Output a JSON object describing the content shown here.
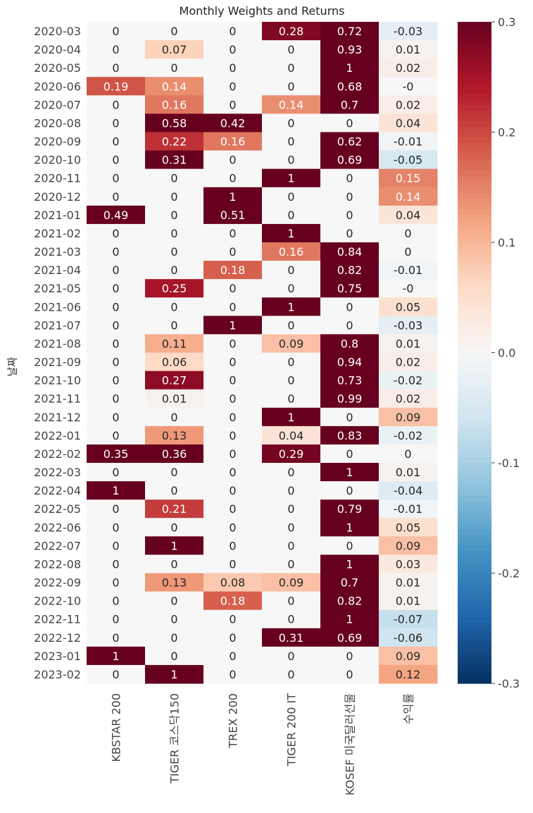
{
  "chart_data": {
    "type": "heatmap",
    "title": "Monthly Weights and Returns",
    "ylabel": "날짜",
    "xlabel": "",
    "columns": [
      "KBSTAR 200",
      "TIGER 코스닥150",
      "TREX 200",
      "TIGER 200 IT",
      "KOSEF 미국달러선물",
      "수익률"
    ],
    "rows": [
      "2020-03",
      "2020-04",
      "2020-05",
      "2020-06",
      "2020-07",
      "2020-08",
      "2020-09",
      "2020-10",
      "2020-11",
      "2020-12",
      "2021-01",
      "2021-02",
      "2021-03",
      "2021-04",
      "2021-05",
      "2021-06",
      "2021-07",
      "2021-08",
      "2021-09",
      "2021-10",
      "2021-11",
      "2021-12",
      "2022-01",
      "2022-02",
      "2022-03",
      "2022-04",
      "2022-05",
      "2022-06",
      "2022-07",
      "2022-08",
      "2022-09",
      "2022-10",
      "2022-11",
      "2022-12",
      "2023-01",
      "2023-02"
    ],
    "labels": [
      [
        "0",
        "0",
        "0",
        "0.28",
        "0.72",
        "-0.03"
      ],
      [
        "0",
        "0.07",
        "0",
        "0",
        "0.93",
        "0.01"
      ],
      [
        "0",
        "0",
        "0",
        "0",
        "1",
        "0.02"
      ],
      [
        "0.19",
        "0.14",
        "0",
        "0",
        "0.68",
        "-0"
      ],
      [
        "0",
        "0.16",
        "0",
        "0.14",
        "0.7",
        "0.02"
      ],
      [
        "0",
        "0.58",
        "0.42",
        "0",
        "0",
        "0.04"
      ],
      [
        "0",
        "0.22",
        "0.16",
        "0",
        "0.62",
        "-0.01"
      ],
      [
        "0",
        "0.31",
        "0",
        "0",
        "0.69",
        "-0.05"
      ],
      [
        "0",
        "0",
        "0",
        "1",
        "0",
        "0.15"
      ],
      [
        "0",
        "0",
        "1",
        "0",
        "0",
        "0.14"
      ],
      [
        "0.49",
        "0",
        "0.51",
        "0",
        "0",
        "0.04"
      ],
      [
        "0",
        "0",
        "0",
        "1",
        "0",
        "0"
      ],
      [
        "0",
        "0",
        "0",
        "0.16",
        "0.84",
        "0"
      ],
      [
        "0",
        "0",
        "0.18",
        "0",
        "0.82",
        "-0.01"
      ],
      [
        "0",
        "0.25",
        "0",
        "0",
        "0.75",
        "-0"
      ],
      [
        "0",
        "0",
        "0",
        "1",
        "0",
        "0.05"
      ],
      [
        "0",
        "0",
        "1",
        "0",
        "0",
        "-0.03"
      ],
      [
        "0",
        "0.11",
        "0",
        "0.09",
        "0.8",
        "0.01"
      ],
      [
        "0",
        "0.06",
        "0",
        "0",
        "0.94",
        "0.02"
      ],
      [
        "0",
        "0.27",
        "0",
        "0",
        "0.73",
        "-0.02"
      ],
      [
        "0",
        "0.01",
        "0",
        "0",
        "0.99",
        "0.02"
      ],
      [
        "0",
        "0",
        "0",
        "1",
        "0",
        "0.09"
      ],
      [
        "0",
        "0.13",
        "0",
        "0.04",
        "0.83",
        "-0.02"
      ],
      [
        "0.35",
        "0.36",
        "0",
        "0.29",
        "0",
        "0"
      ],
      [
        "0",
        "0",
        "0",
        "0",
        "1",
        "0.01"
      ],
      [
        "1",
        "0",
        "0",
        "0",
        "0",
        "-0.04"
      ],
      [
        "0",
        "0.21",
        "0",
        "0",
        "0.79",
        "-0.01"
      ],
      [
        "0",
        "0",
        "0",
        "0",
        "1",
        "0.05"
      ],
      [
        "0",
        "1",
        "0",
        "0",
        "0",
        "0.09"
      ],
      [
        "0",
        "0",
        "0",
        "0",
        "1",
        "0.03"
      ],
      [
        "0",
        "0.13",
        "0.08",
        "0.09",
        "0.7",
        "0.01"
      ],
      [
        "0",
        "0",
        "0.18",
        "0",
        "0.82",
        "0.01"
      ],
      [
        "0",
        "0",
        "0",
        "0",
        "1",
        "-0.07"
      ],
      [
        "0",
        "0",
        "0",
        "0.31",
        "0.69",
        "-0.06"
      ],
      [
        "1",
        "0",
        "0",
        "0",
        "0",
        "0.09"
      ],
      [
        "0",
        "1",
        "0",
        "0",
        "0",
        "0.12"
      ]
    ],
    "vmin": -0.3,
    "vmax": 0.3,
    "colormap": "RdBu_r",
    "colorbar_ticks": [
      "0.3",
      "0.2",
      "0.1",
      "0.0",
      "-0.1",
      "-0.2",
      "-0.3"
    ],
    "colorbar_tick_values": [
      0.3,
      0.2,
      0.1,
      0.0,
      -0.1,
      -0.2,
      -0.3
    ],
    "colormap_stops": [
      "#053061",
      "#2166ac",
      "#4393c3",
      "#92c5de",
      "#d1e5f0",
      "#f7f7f7",
      "#fddbc7",
      "#f4a582",
      "#d6604d",
      "#b2182b",
      "#67001f"
    ]
  }
}
